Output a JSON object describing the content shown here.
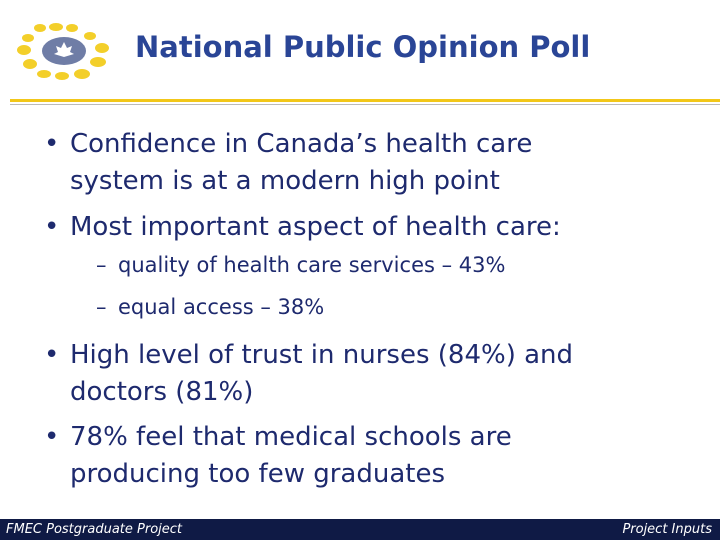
{
  "header": {
    "title": "National Public Opinion Poll"
  },
  "bullets": [
    {
      "lines": [
        "Confidence in Canada’s health care",
        "system is at a modern high point"
      ]
    },
    {
      "lines": [
        "Most important aspect of health care:"
      ],
      "subs": [
        "quality of health care services – 43%",
        "equal access – 38%"
      ]
    },
    {
      "lines": [
        "High level of trust in nurses (84%) and",
        "doctors (81%)"
      ]
    },
    {
      "lines": [
        "78% feel that medical schools are",
        "producing too few graduates"
      ]
    }
  ],
  "footer": {
    "left": "FMEC Postgraduate Project",
    "right": "Project Inputs"
  }
}
